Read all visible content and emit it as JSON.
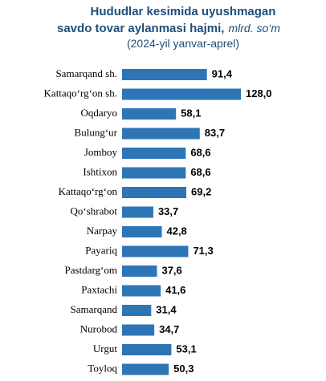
{
  "chart_data": {
    "type": "bar",
    "orientation": "horizontal",
    "title": [
      "Hududlar kesimida uyushmagan",
      "savdo tovar aylanmasi hajmi,"
    ],
    "unit": "mlrd. so‘m",
    "subtitle": "(2024-yil yanvar-aprel)",
    "categories": [
      "Samarqand sh.",
      "Kattaqo‘rg‘on  sh.",
      "Oqdaryo",
      "Bulung‘ur",
      "Jomboy",
      "Ishtixon",
      "Kattaqo‘rg‘on",
      "Qo‘shrabot",
      "Narpay",
      "Payariq",
      "Pastdarg‘om",
      "Paxtachi",
      "Samarqand",
      "Nurobod",
      "Urgut",
      "Toyloq"
    ],
    "values": [
      91.4,
      128.0,
      58.1,
      83.7,
      68.6,
      68.6,
      69.2,
      33.7,
      42.8,
      71.3,
      37.6,
      41.6,
      31.4,
      34.7,
      53.1,
      50.3
    ],
    "value_labels": [
      "91,4",
      "128,0",
      "58,1",
      "83,7",
      "68,6",
      "68,6",
      "69,2",
      "33,7",
      "42,8",
      "71,3",
      "37,6",
      "41,6",
      "31,4",
      "34,7",
      "53,1",
      "50,3"
    ],
    "color": "#2e75b6"
  }
}
